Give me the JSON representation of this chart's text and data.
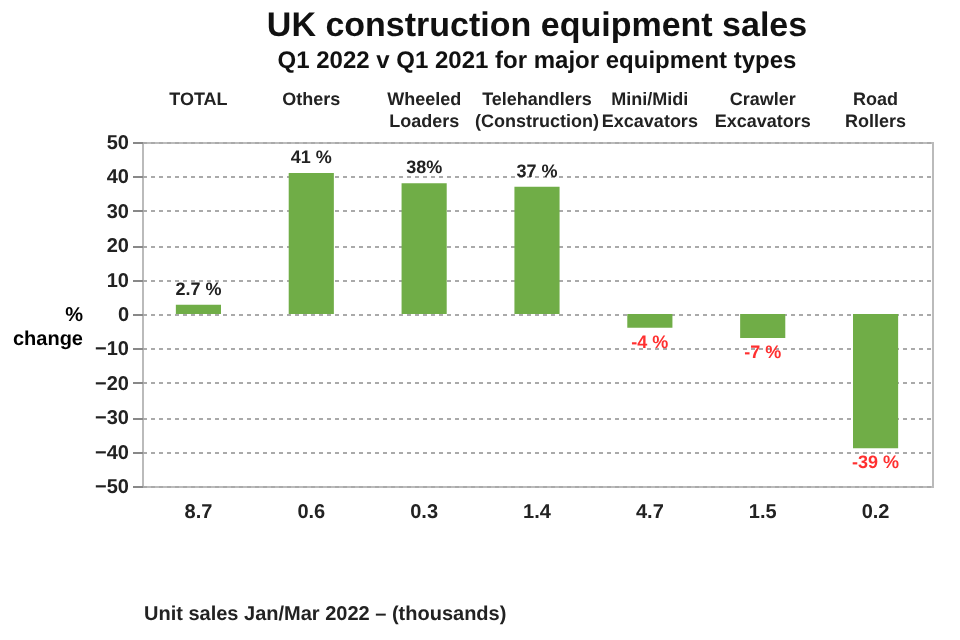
{
  "chart_data": {
    "type": "bar",
    "title": "UK construction equipment sales",
    "subtitle": "Q1 2022  v  Q1 2021 for major equipment types",
    "categories": [
      "TOTAL",
      "Others",
      "Wheeled Loaders",
      "Telehandlers (Construction)",
      "Mini/Midi Excavators",
      "Crawler Excavators",
      "Road Rollers"
    ],
    "values": [
      2.7,
      41,
      38,
      37,
      -4,
      -7,
      -39
    ],
    "value_labels": [
      "2.7 %",
      "41 %",
      "38%",
      "37 %",
      "-4 %",
      "-7 %",
      "-39 %"
    ],
    "color": "#70ad47",
    "ylabel": "% change",
    "ylim": [
      -50,
      50
    ],
    "yticks": [
      -50,
      -40,
      -30,
      -20,
      -10,
      0,
      10,
      20,
      30,
      40,
      50
    ],
    "grid": "y",
    "annotations": [
      "8.7",
      "0.6",
      "0.3",
      "1.4",
      "4.7",
      "1.5",
      "0.2",
      "Unit sales Jan/Mar 2022 – (thousands)"
    ]
  }
}
